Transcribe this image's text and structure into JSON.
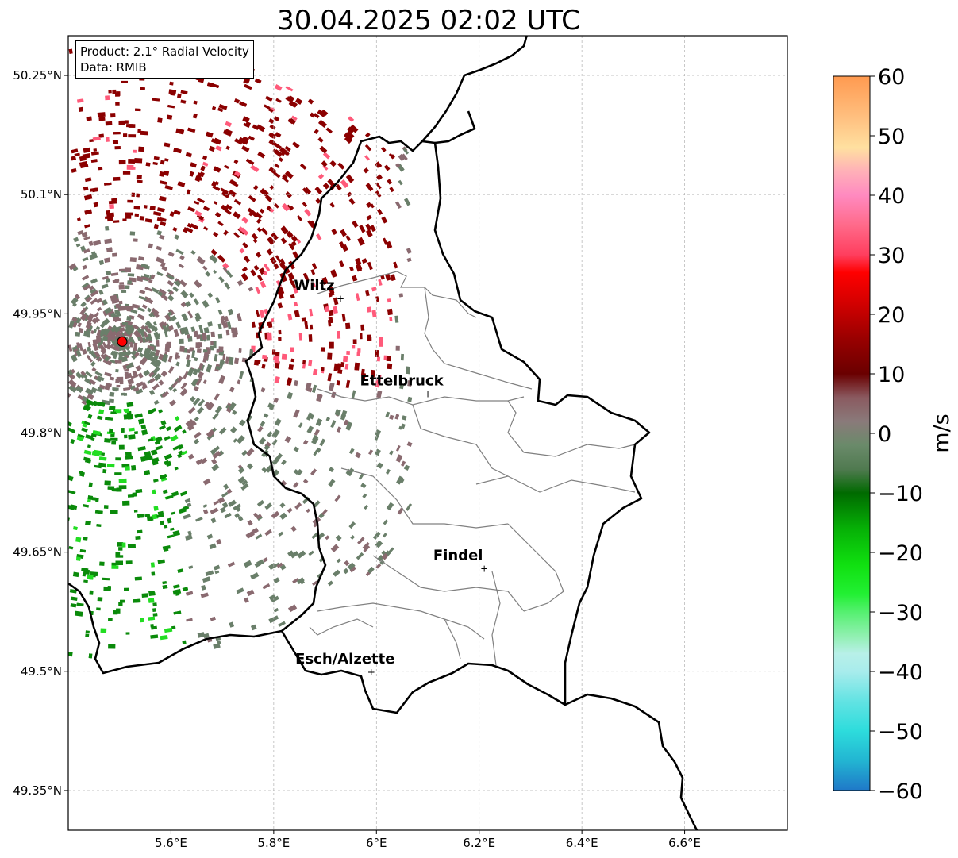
{
  "title": "30.04.2025 02:02 UTC",
  "info": {
    "product": "Product: 2.1° Radial Velocity",
    "data": "Data: RMIB"
  },
  "axes": {
    "lon_range": [
      5.4,
      6.8
    ],
    "lat_range": [
      49.3,
      50.3
    ],
    "lon_ticks": [
      {
        "value": 5.6,
        "label": "5.6°E"
      },
      {
        "value": 5.8,
        "label": "5.8°E"
      },
      {
        "value": 6.0,
        "label": "6°E"
      },
      {
        "value": 6.2,
        "label": "6.2°E"
      },
      {
        "value": 6.4,
        "label": "6.4°E"
      },
      {
        "value": 6.6,
        "label": "6.6°E"
      }
    ],
    "lat_ticks": [
      {
        "value": 50.25,
        "label": "50.25°N"
      },
      {
        "value": 50.1,
        "label": "50.1°N"
      },
      {
        "value": 49.95,
        "label": "49.95°N"
      },
      {
        "value": 49.8,
        "label": "49.8°N"
      },
      {
        "value": 49.65,
        "label": "49.65°N"
      },
      {
        "value": 49.5,
        "label": "49.5°N"
      },
      {
        "value": 49.35,
        "label": "49.35°N"
      }
    ],
    "grid": true
  },
  "radar_site": {
    "lon": 5.505,
    "lat": 49.915,
    "color": "#ff0000"
  },
  "cities": [
    {
      "name": "Wiltz",
      "lon": 5.93,
      "lat": 49.97
    },
    {
      "name": "Ettelbruck",
      "lon": 6.1,
      "lat": 49.85
    },
    {
      "name": "Findel",
      "lon": 6.21,
      "lat": 49.63
    },
    {
      "name": "Esch/Alzette",
      "lon": 5.99,
      "lat": 49.5
    }
  ],
  "colorbar": {
    "unit": "m/s",
    "min": -60,
    "max": 60,
    "ticks": [
      {
        "value": 60,
        "label": "60"
      },
      {
        "value": 50,
        "label": "50"
      },
      {
        "value": 40,
        "label": "40"
      },
      {
        "value": 30,
        "label": "30"
      },
      {
        "value": 20,
        "label": "20"
      },
      {
        "value": 10,
        "label": "10"
      },
      {
        "value": 0,
        "label": "0"
      },
      {
        "value": -10,
        "label": "−10"
      },
      {
        "value": -20,
        "label": "−20"
      },
      {
        "value": -30,
        "label": "−30"
      },
      {
        "value": -40,
        "label": "−40"
      },
      {
        "value": -50,
        "label": "−50"
      },
      {
        "value": -60,
        "label": "−60"
      }
    ],
    "stops": [
      {
        "value": -60,
        "color": "#1f78c8"
      },
      {
        "value": -55,
        "color": "#22b5d2"
      },
      {
        "value": -50,
        "color": "#2ddcdc"
      },
      {
        "value": -45,
        "color": "#62e3e3"
      },
      {
        "value": -40,
        "color": "#a8ecec"
      },
      {
        "value": -37,
        "color": "#b8f0e8"
      },
      {
        "value": -34,
        "color": "#90f0b0"
      },
      {
        "value": -30,
        "color": "#55f070"
      },
      {
        "value": -27,
        "color": "#22f033"
      },
      {
        "value": -22,
        "color": "#10e010"
      },
      {
        "value": -16,
        "color": "#06b006"
      },
      {
        "value": -10,
        "color": "#006a00"
      },
      {
        "value": -6,
        "color": "#507a50"
      },
      {
        "value": -2,
        "color": "#6a8a6a"
      },
      {
        "value": 2,
        "color": "#8a7a7a"
      },
      {
        "value": 6,
        "color": "#8a5a60"
      },
      {
        "value": 10,
        "color": "#6a0000"
      },
      {
        "value": 16,
        "color": "#9a0000"
      },
      {
        "value": 22,
        "color": "#d40000"
      },
      {
        "value": 27,
        "color": "#ff0000"
      },
      {
        "value": 30,
        "color": "#ff3e5e"
      },
      {
        "value": 35,
        "color": "#ff6a8a"
      },
      {
        "value": 40,
        "color": "#ff8ac0"
      },
      {
        "value": 44,
        "color": "#ffb0b8"
      },
      {
        "value": 48,
        "color": "#ffe0a0"
      },
      {
        "value": 53,
        "color": "#ffc080"
      },
      {
        "value": 60,
        "color": "#ff9a50"
      }
    ]
  },
  "radar_colors": {
    "far_red": "#8b0000",
    "pink": "#ff5a7a",
    "mauve": "#8a6a70",
    "gray_green": "#6a7f6a",
    "green": "#0a8a0a",
    "bright_green": "#22dd22"
  }
}
